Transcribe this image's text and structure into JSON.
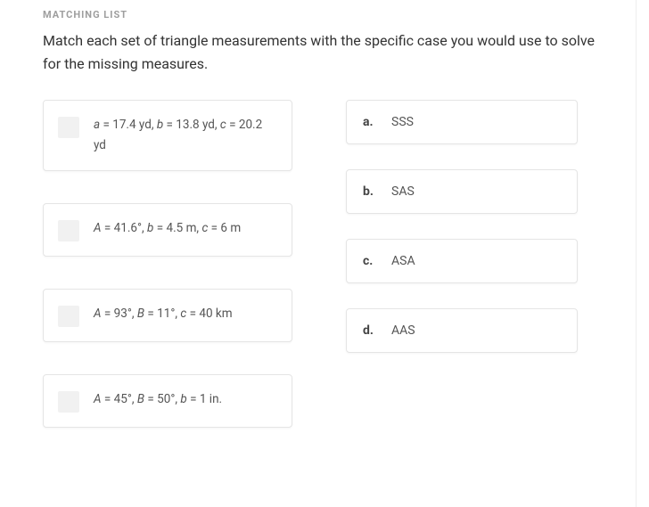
{
  "section_label": "MATCHING LIST",
  "prompt": "Match each set of triangle measurements with the specific case you would use to solve for the missing measures.",
  "questions": [
    {
      "html": "<span class='normal'><i>a</i> = 17.4 yd, <i>b</i> = 13.8 yd, <i>c</i> = 20.2 yd</span>"
    },
    {
      "html": "<span class='normal'><i>A</i> = 41.6°, <i>b</i> = 4.5 m, <i>c</i> = 6 m</span>"
    },
    {
      "html": "<span class='normal'><i>A</i> = 93°, <i>B</i> = 11°, <i>c</i> = 40 km</span>"
    },
    {
      "html": "<span class='normal'><i>A</i> = 45°, <i>B</i> = 50°, <i>b</i> = 1 in.</span>"
    }
  ],
  "answers": [
    {
      "letter": "a.",
      "text": "SSS"
    },
    {
      "letter": "b.",
      "text": "SAS"
    },
    {
      "letter": "c.",
      "text": "ASA"
    },
    {
      "letter": "d.",
      "text": "AAS"
    }
  ],
  "colors": {
    "label": "#9e9e9e",
    "text": "#333333",
    "card_border": "#e5e5e5",
    "dropbox": "#f1f1f1"
  }
}
